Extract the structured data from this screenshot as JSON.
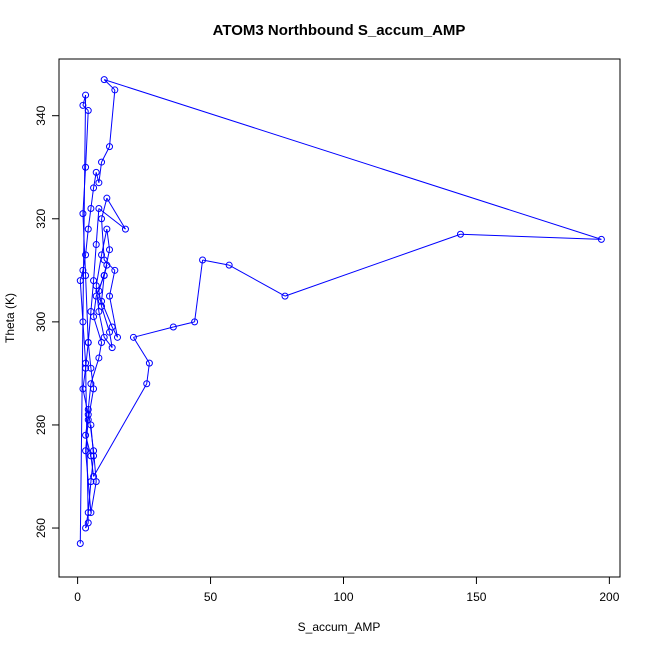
{
  "chart_data": {
    "type": "line",
    "title": "ATOM3 Northbound S_accum_AMP",
    "xlabel": "S_accum_AMP",
    "ylabel": "Theta (K)",
    "xlim": [
      -7,
      204
    ],
    "ylim": [
      250.5,
      351
    ],
    "xticks": [
      0,
      50,
      100,
      150,
      200
    ],
    "yticks": [
      260,
      280,
      300,
      320,
      340
    ],
    "grid": false,
    "markers": "open-circle",
    "line_color": "#0000ff",
    "series": [
      {
        "x": [
          1,
          3,
          2,
          4,
          3,
          2,
          3,
          4,
          5,
          6,
          4,
          3,
          5,
          7,
          6,
          4,
          5,
          8,
          9,
          6,
          7,
          10,
          11,
          8,
          9,
          12,
          13,
          10,
          8,
          7,
          9,
          11,
          12,
          10,
          9,
          13,
          15,
          12,
          14,
          10,
          9,
          11,
          18,
          8,
          7,
          6,
          5,
          4,
          3,
          2,
          4,
          3,
          5,
          6,
          26,
          27,
          21,
          36,
          44,
          47,
          57,
          78,
          144,
          197,
          10,
          14,
          12,
          9,
          8,
          7,
          6,
          5,
          4,
          3,
          2,
          1,
          2,
          3,
          4,
          3,
          4,
          5,
          6,
          5
        ],
        "y": [
          257,
          344,
          342,
          341,
          330,
          321,
          309,
          296,
          291,
          287,
          281,
          275,
          263,
          269,
          275,
          283,
          288,
          293,
          296,
          301,
          305,
          309,
          311,
          306,
          303,
          298,
          295,
          297,
          302,
          307,
          313,
          318,
          314,
          309,
          304,
          299,
          297,
          305,
          310,
          312,
          320,
          324,
          318,
          322,
          315,
          308,
          302,
          296,
          291,
          287,
          282,
          278,
          274,
          270,
          288,
          292,
          297,
          299,
          300,
          312,
          311,
          305,
          317,
          316,
          347,
          345,
          334,
          331,
          327,
          329,
          326,
          322,
          318,
          313,
          310,
          308,
          300,
          292,
          261,
          260,
          263,
          269,
          274,
          280
        ]
      }
    ]
  }
}
